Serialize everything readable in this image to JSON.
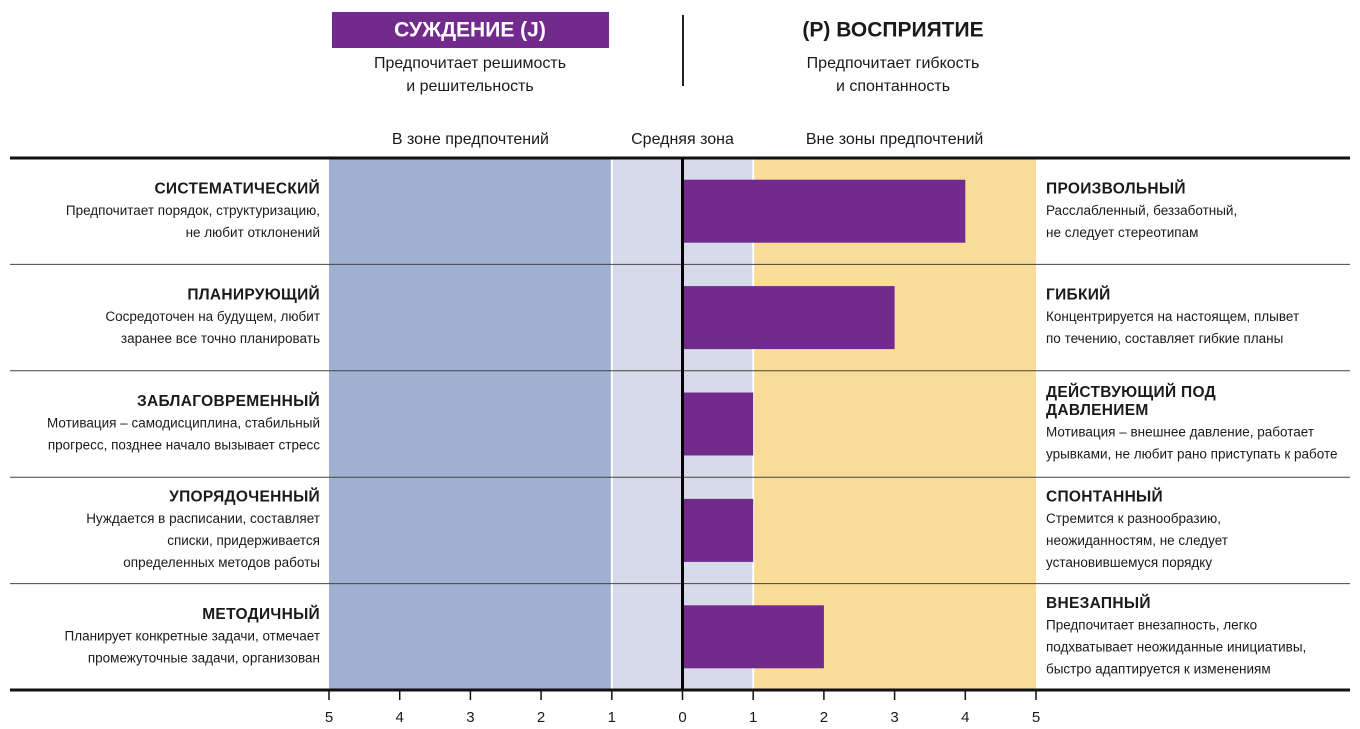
{
  "chart_data": {
    "type": "bar",
    "left_pole": {
      "title": "СУЖДЕНИЕ (J)",
      "description": [
        "Предпочитает решимость",
        "и решительность"
      ],
      "color": "#732a8d"
    },
    "right_pole": {
      "title": "(P) ВОСПРИЯТИЕ",
      "description": [
        "Предпочитает гибкость",
        "и спонтанность"
      ]
    },
    "zones": [
      {
        "label": "В зоне предпочтений",
        "range": [
          -5,
          -1
        ],
        "color": "#a0b0d0"
      },
      {
        "label": "Средняя зона",
        "range": [
          -1,
          1
        ],
        "color": "#d5dbe9"
      },
      {
        "label": "Вне зоны предпочтений",
        "range": [
          1,
          5
        ],
        "color": "#f8dc98"
      }
    ],
    "rows": [
      {
        "left_name": [
          "СИСТЕМАТИЧЕСКИЙ"
        ],
        "left_desc": [
          "Предпочитает порядок, структуризацию,",
          "не любит отклонений"
        ],
        "right_name": [
          "ПРОИЗВОЛЬНЫЙ"
        ],
        "right_desc": [
          "Расслабленный, беззаботный,",
          "не следует стереотипам"
        ]
      },
      {
        "left_name": [
          "ПЛАНИРУЮЩИЙ"
        ],
        "left_desc": [
          "Сосредоточен на будущем, любит",
          "заранее все точно планировать"
        ],
        "right_name": [
          "ГИБКИЙ"
        ],
        "right_desc": [
          "Концентрируется на настоящем, плывет",
          "по течению, составляет гибкие планы"
        ]
      },
      {
        "left_name": [
          "ЗАБЛАГОВРЕМЕННЫЙ"
        ],
        "left_desc": [
          "Мотивация – самодисциплина, стабильный",
          "прогресс, позднее начало вызывает стресс"
        ],
        "right_name": [
          "ДЕЙСТВУЮЩИЙ ПОД",
          "ДАВЛЕНИЕМ"
        ],
        "right_desc": [
          "Мотивация – внешнее давление, работает",
          "урывками, не любит рано приступать к работе"
        ]
      },
      {
        "left_name": [
          "УПОРЯДОЧЕННЫЙ"
        ],
        "left_desc": [
          "Нуждается в расписании, составляет",
          "списки, придерживается",
          "определенных методов работы"
        ],
        "right_name": [
          "СПОНТАННЫЙ"
        ],
        "right_desc": [
          "Стремится к разнообразию,",
          "неожиданностям, не следует",
          "установившемуся порядку"
        ]
      },
      {
        "left_name": [
          "МЕТОДИЧНЫЙ"
        ],
        "left_desc": [
          "Планирует конкретные задачи, отмечает",
          "промежуточные задачи, организован"
        ],
        "right_name": [
          "ВНЕЗАПНЫЙ"
        ],
        "right_desc": [
          "Предпочитает внезапность, легко",
          "подхватывает неожиданные инициативы,",
          "быстро адаптируется к изменениям"
        ]
      }
    ],
    "values": [
      4,
      3,
      1,
      1,
      2
    ],
    "color": "#732a8d",
    "xlim": [
      -5,
      5
    ],
    "xticks": [
      {
        "value": -5,
        "label": "5"
      },
      {
        "value": -4,
        "label": "4"
      },
      {
        "value": -3,
        "label": "3"
      },
      {
        "value": -2,
        "label": "2"
      },
      {
        "value": -1,
        "label": "1"
      },
      0,
      1,
      2,
      3,
      4,
      5
    ]
  }
}
